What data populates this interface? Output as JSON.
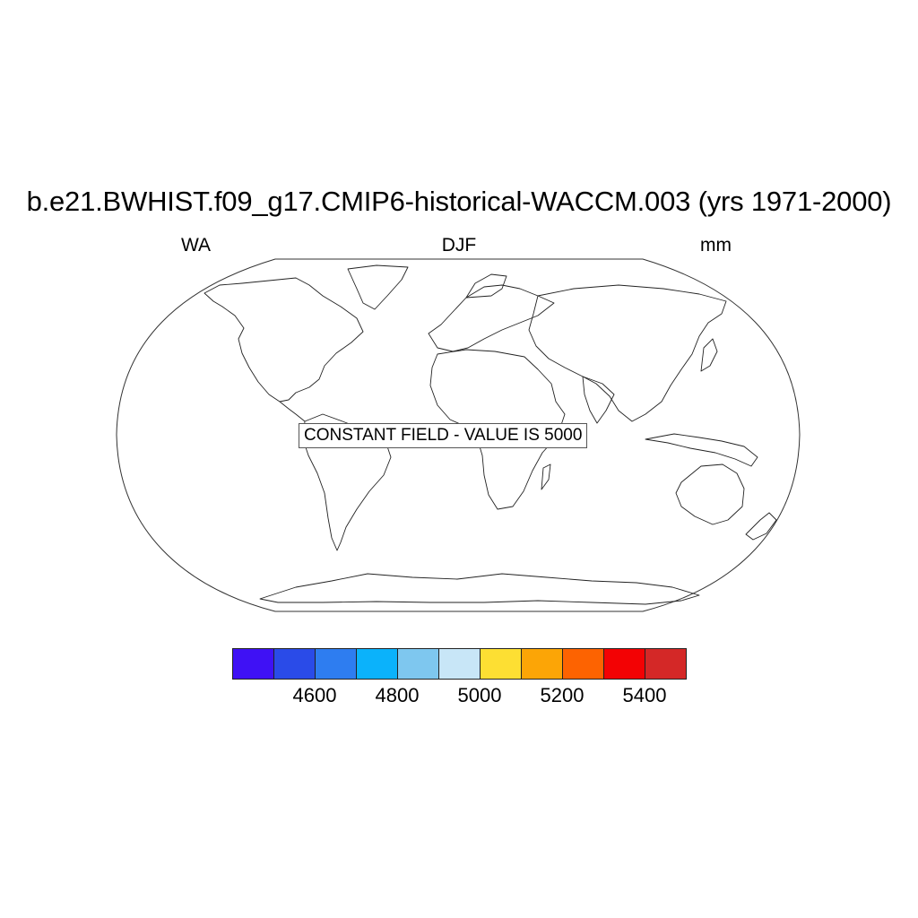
{
  "title": "b.e21.BWHIST.f09_g17.CMIP6-historical-WACCM.003 (yrs 1971-2000)",
  "left_label": "WA",
  "center_label": "DJF",
  "right_label": "mm",
  "notice": "CONSTANT FIELD - VALUE IS 5000",
  "map": {
    "projection": "robinson",
    "coastlines": true
  },
  "colorbar": {
    "colors": [
      "#3f11f5",
      "#2a4be8",
      "#2e7df0",
      "#0bb2fb",
      "#7ec7ef",
      "#c8e6f7",
      "#fddf33",
      "#fca506",
      "#fd6301",
      "#f30204",
      "#d42827"
    ],
    "labels": [
      "4600",
      "4800",
      "5000",
      "5200",
      "5400"
    ]
  }
}
